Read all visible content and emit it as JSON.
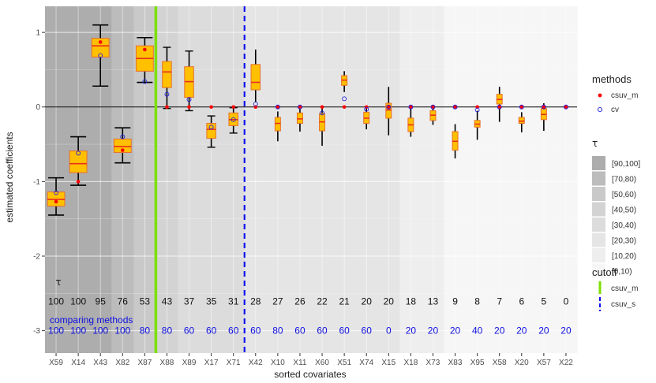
{
  "chart_data": {
    "type": "boxplot",
    "xlabel": "sorted covariates",
    "ylabel": "estimated coefficients",
    "ylim": [
      -3.3,
      1.35
    ],
    "yticks": [
      1,
      0,
      -1,
      -2,
      -3
    ],
    "ytick_labels": [
      "1",
      "0",
      "-1",
      "-2",
      "-3"
    ],
    "categories": [
      "X59",
      "X14",
      "X43",
      "X82",
      "X87",
      "X88",
      "X89",
      "X17",
      "X71",
      "X42",
      "X10",
      "X11",
      "X60",
      "X51",
      "X74",
      "X15",
      "X18",
      "X73",
      "X83",
      "X95",
      "X58",
      "X20",
      "X57",
      "X22"
    ],
    "tau": [
      "100",
      "100",
      "95",
      "76",
      "53",
      "43",
      "37",
      "35",
      "31",
      "28",
      "27",
      "26",
      "22",
      "21",
      "20",
      "20",
      "18",
      "13",
      "9",
      "8",
      "7",
      "6",
      "5",
      "0"
    ],
    "tau_values": [
      100,
      100,
      95,
      76,
      53,
      43,
      37,
      35,
      31,
      28,
      27,
      26,
      22,
      21,
      20,
      20,
      18,
      13,
      9,
      8,
      7,
      6,
      5,
      0
    ],
    "tau_label": "τ",
    "comparing_label": "comparing methods",
    "comparing": [
      "100",
      "100",
      "100",
      "100",
      "80",
      "80",
      "60",
      "60",
      "60",
      "60",
      "80",
      "60",
      "60",
      "60",
      "60",
      "0",
      "20",
      "20",
      "20",
      "40",
      "20",
      "20",
      "20",
      "20"
    ],
    "boxes": [
      {
        "wlo": -1.45,
        "q1": -1.33,
        "med": -1.24,
        "q3": -1.14,
        "whi": -0.95
      },
      {
        "wlo": -1.05,
        "q1": -0.88,
        "med": -0.76,
        "q3": -0.59,
        "whi": -0.4
      },
      {
        "wlo": 0.28,
        "q1": 0.67,
        "med": 0.82,
        "q3": 0.92,
        "whi": 1.1
      },
      {
        "wlo": -0.75,
        "q1": -0.61,
        "med": -0.53,
        "q3": -0.43,
        "whi": -0.28
      },
      {
        "wlo": 0.33,
        "q1": 0.48,
        "med": 0.65,
        "q3": 0.82,
        "whi": 0.93
      },
      {
        "wlo": -0.02,
        "q1": 0.26,
        "med": 0.47,
        "q3": 0.61,
        "whi": 0.8
      },
      {
        "wlo": -0.05,
        "q1": 0.13,
        "med": 0.34,
        "q3": 0.54,
        "whi": 0.75
      },
      {
        "wlo": -0.54,
        "q1": -0.42,
        "med": -0.3,
        "q3": -0.22,
        "whi": -0.12
      },
      {
        "wlo": -0.35,
        "q1": -0.25,
        "med": -0.17,
        "q3": -0.08,
        "whi": -0.01
      },
      {
        "wlo": 0.07,
        "q1": 0.23,
        "med": 0.33,
        "q3": 0.57,
        "whi": 0.77
      },
      {
        "wlo": -0.46,
        "q1": -0.32,
        "med": -0.22,
        "q3": -0.14,
        "whi": -0.06
      },
      {
        "wlo": -0.33,
        "q1": -0.22,
        "med": -0.16,
        "q3": -0.08,
        "whi": -0.03
      },
      {
        "wlo": -0.52,
        "q1": -0.32,
        "med": -0.2,
        "q3": -0.09,
        "whi": 0.02
      },
      {
        "wlo": 0.2,
        "q1": 0.29,
        "med": 0.36,
        "q3": 0.42,
        "whi": 0.48
      },
      {
        "wlo": -0.3,
        "q1": -0.22,
        "med": -0.15,
        "q3": -0.07,
        "whi": 0.0
      },
      {
        "wlo": -0.38,
        "q1": -0.15,
        "med": -0.04,
        "q3": 0.05,
        "whi": 0.27
      },
      {
        "wlo": -0.4,
        "q1": -0.33,
        "med": -0.24,
        "q3": -0.15,
        "whi": 0.0
      },
      {
        "wlo": -0.24,
        "q1": -0.18,
        "med": -0.11,
        "q3": -0.05,
        "whi": 0.01
      },
      {
        "wlo": -0.69,
        "q1": -0.58,
        "med": -0.46,
        "q3": -0.33,
        "whi": -0.23
      },
      {
        "wlo": -0.44,
        "q1": -0.27,
        "med": -0.23,
        "q3": -0.18,
        "whi": -0.05
      },
      {
        "wlo": -0.2,
        "q1": 0.04,
        "med": 0.1,
        "q3": 0.17,
        "whi": 0.27
      },
      {
        "wlo": -0.34,
        "q1": -0.22,
        "med": -0.19,
        "q3": -0.14,
        "whi": -0.07
      },
      {
        "wlo": -0.32,
        "q1": -0.17,
        "med": -0.1,
        "q3": -0.02,
        "whi": 0.05
      },
      {
        "wlo": 0.0,
        "q1": 0.0,
        "med": 0.0,
        "q3": 0.0,
        "whi": 0.0
      }
    ],
    "csuv_m": [
      -1.27,
      -1.0,
      0.87,
      -0.58,
      0.77,
      0.0,
      0.0,
      0.0,
      0.0,
      0.0,
      0.0,
      0.0,
      0.0,
      0.0,
      0.0,
      0.0,
      0.0,
      0.0,
      0.0,
      0.0,
      0.0,
      0.0,
      0.0,
      0.0
    ],
    "cv": [
      -1.15,
      -0.62,
      0.69,
      -0.4,
      0.34,
      0.17,
      0.1,
      -0.27,
      -0.17,
      0.04,
      0.0,
      0.0,
      -0.08,
      0.11,
      -0.03,
      0.0,
      0.0,
      0.0,
      0.0,
      -0.04,
      0.0,
      0.0,
      0.0,
      0.0
    ],
    "cutoffs": [
      {
        "name": "csuv_m",
        "after_category": "X87",
        "color": "#7CE000",
        "style": "solid"
      },
      {
        "name": "csuv_s",
        "after_category": "X71",
        "color": "#1010F0",
        "style": "dashed"
      }
    ],
    "legend": {
      "methods_title": "methods",
      "methods": [
        {
          "name": "csuv_m",
          "color": "#FF0000",
          "marker": "filled-dot"
        },
        {
          "name": "cv",
          "color": "#2020E0",
          "marker": "open-circle"
        }
      ],
      "tau_title": "τ",
      "tau_bins": [
        "[90,100]",
        "[70,80)",
        "[50,60)",
        "[40,50)",
        "[30,40)",
        "[20,30)",
        "[10,20)",
        "[0,10)"
      ],
      "tau_colors": [
        "#adadad",
        "#bcbcbc",
        "#c9c9c9",
        "#d3d3d3",
        "#dcdcdc",
        "#e5e5e5",
        "#eeeeee",
        "#f6f6f6"
      ],
      "cutoff_title": "cutoff",
      "cutoff_items": [
        "csuv_m",
        "csuv_s"
      ]
    },
    "colors": {
      "box_fill": "#FFC000",
      "box_border": "#E8702A",
      "median": "#E8301A",
      "whisker": "#000000",
      "zero_line": "#000000",
      "comparing_text": "#1010E0"
    },
    "grid": true
  }
}
